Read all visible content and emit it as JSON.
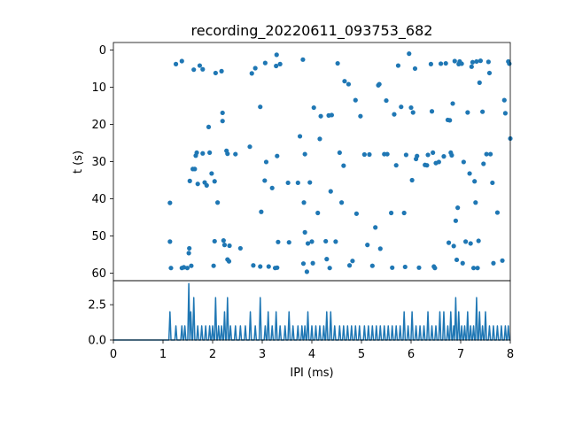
{
  "chart_data": [
    {
      "type": "scatter",
      "title": "recording_20220611_093753_682",
      "xlabel": "",
      "ylabel": "t (s)",
      "xlim": [
        0,
        8
      ],
      "ylim": [
        62,
        -2
      ],
      "yaxis_inverted": true,
      "yticks": [
        0,
        10,
        20,
        30,
        40,
        50,
        60
      ],
      "grid": false,
      "marker_color": "#1f77b4",
      "points": [
        [
          1.14,
          41.1
        ],
        [
          1.14,
          51.5
        ],
        [
          1.16,
          58.6
        ],
        [
          1.26,
          3.8
        ],
        [
          1.38,
          3.0
        ],
        [
          1.38,
          58.6
        ],
        [
          1.42,
          58.4
        ],
        [
          1.49,
          58.6
        ],
        [
          1.52,
          54.6
        ],
        [
          1.53,
          53.3
        ],
        [
          1.54,
          35.2
        ],
        [
          1.57,
          58.0
        ],
        [
          1.6,
          32.0
        ],
        [
          1.62,
          5.3
        ],
        [
          1.64,
          32.0
        ],
        [
          1.66,
          28.4
        ],
        [
          1.68,
          27.6
        ],
        [
          1.7,
          36.0
        ],
        [
          1.74,
          4.2
        ],
        [
          1.8,
          5.2
        ],
        [
          1.8,
          27.8
        ],
        [
          1.84,
          35.6
        ],
        [
          1.88,
          36.4
        ],
        [
          1.92,
          20.7
        ],
        [
          1.94,
          27.6
        ],
        [
          1.98,
          33.2
        ],
        [
          2.02,
          58.0
        ],
        [
          2.04,
          35.3
        ],
        [
          2.04,
          51.4
        ],
        [
          2.06,
          6.2
        ],
        [
          2.1,
          41.0
        ],
        [
          2.18,
          5.7
        ],
        [
          2.2,
          16.9
        ],
        [
          2.2,
          19.1
        ],
        [
          2.22,
          51.2
        ],
        [
          2.24,
          52.4
        ],
        [
          2.28,
          27.1
        ],
        [
          2.3,
          56.3
        ],
        [
          2.3,
          27.9
        ],
        [
          2.33,
          56.8
        ],
        [
          2.34,
          52.6
        ],
        [
          2.46,
          28.0
        ],
        [
          2.56,
          53.3
        ],
        [
          2.75,
          26.0
        ],
        [
          2.79,
          6.3
        ],
        [
          2.82,
          57.9
        ],
        [
          2.86,
          4.9
        ],
        [
          2.96,
          15.3
        ],
        [
          2.96,
          58.2
        ],
        [
          2.98,
          43.5
        ],
        [
          3.05,
          35.1
        ],
        [
          3.06,
          3.5
        ],
        [
          3.08,
          30.1
        ],
        [
          3.13,
          58.2
        ],
        [
          3.2,
          37.1
        ],
        [
          3.26,
          58.6
        ],
        [
          3.28,
          4.3
        ],
        [
          3.29,
          1.3
        ],
        [
          3.3,
          58.5
        ],
        [
          3.3,
          28.5
        ],
        [
          3.32,
          51.6
        ],
        [
          3.36,
          3.8
        ],
        [
          3.52,
          35.7
        ],
        [
          3.54,
          51.7
        ],
        [
          3.72,
          35.7
        ],
        [
          3.76,
          23.2
        ],
        [
          3.82,
          2.6
        ],
        [
          3.83,
          57.4
        ],
        [
          3.84,
          41.0
        ],
        [
          3.86,
          28.0
        ],
        [
          3.86,
          49.0
        ],
        [
          3.9,
          59.6
        ],
        [
          3.92,
          52.0
        ],
        [
          3.96,
          35.6
        ],
        [
          4.0,
          51.5
        ],
        [
          4.02,
          57.3
        ],
        [
          4.04,
          15.5
        ],
        [
          4.12,
          43.8
        ],
        [
          4.16,
          23.9
        ],
        [
          4.18,
          17.8
        ],
        [
          4.28,
          51.4
        ],
        [
          4.3,
          56.2
        ],
        [
          4.34,
          17.6
        ],
        [
          4.36,
          58.6
        ],
        [
          4.38,
          38.0
        ],
        [
          4.4,
          17.5
        ],
        [
          4.48,
          51.5
        ],
        [
          4.52,
          3.6
        ],
        [
          4.56,
          27.6
        ],
        [
          4.6,
          41.0
        ],
        [
          4.64,
          31.1
        ],
        [
          4.66,
          8.4
        ],
        [
          4.74,
          9.2
        ],
        [
          4.76,
          57.9
        ],
        [
          4.82,
          56.7
        ],
        [
          4.88,
          13.5
        ],
        [
          4.9,
          44.0
        ],
        [
          4.98,
          17.8
        ],
        [
          5.06,
          28.1
        ],
        [
          5.12,
          52.4
        ],
        [
          5.16,
          28.1
        ],
        [
          5.22,
          58.0
        ],
        [
          5.28,
          47.7
        ],
        [
          5.34,
          9.5
        ],
        [
          5.36,
          9.2
        ],
        [
          5.38,
          53.4
        ],
        [
          5.46,
          28.0
        ],
        [
          5.5,
          13.6
        ],
        [
          5.52,
          28.0
        ],
        [
          5.6,
          43.8
        ],
        [
          5.62,
          58.5
        ],
        [
          5.66,
          17.3
        ],
        [
          5.7,
          31.0
        ],
        [
          5.74,
          4.2
        ],
        [
          5.8,
          15.3
        ],
        [
          5.86,
          43.8
        ],
        [
          5.88,
          58.3
        ],
        [
          5.9,
          28.2
        ],
        [
          5.96,
          1.0
        ],
        [
          6.0,
          15.5
        ],
        [
          6.02,
          35.0
        ],
        [
          6.04,
          16.8
        ],
        [
          6.08,
          5.0
        ],
        [
          6.1,
          29.3
        ],
        [
          6.12,
          28.5
        ],
        [
          6.16,
          58.5
        ],
        [
          6.28,
          30.9
        ],
        [
          6.32,
          31.0
        ],
        [
          6.34,
          28.2
        ],
        [
          6.4,
          3.8
        ],
        [
          6.42,
          16.5
        ],
        [
          6.44,
          27.6
        ],
        [
          6.46,
          58.2
        ],
        [
          6.48,
          58.6
        ],
        [
          6.5,
          30.4
        ],
        [
          6.56,
          30.1
        ],
        [
          6.6,
          3.7
        ],
        [
          6.66,
          28.6
        ],
        [
          6.7,
          3.6
        ],
        [
          6.74,
          18.8
        ],
        [
          6.76,
          51.8
        ],
        [
          6.78,
          18.9
        ],
        [
          6.8,
          27.6
        ],
        [
          6.82,
          28.3
        ],
        [
          6.84,
          14.4
        ],
        [
          6.86,
          52.7
        ],
        [
          6.88,
          3.0
        ],
        [
          6.9,
          45.9
        ],
        [
          6.92,
          56.4
        ],
        [
          6.94,
          42.4
        ],
        [
          6.96,
          3.8
        ],
        [
          6.98,
          3.1
        ],
        [
          7.02,
          3.7
        ],
        [
          7.04,
          57.3
        ],
        [
          7.06,
          30.1
        ],
        [
          7.1,
          51.5
        ],
        [
          7.14,
          16.8
        ],
        [
          7.18,
          33.2
        ],
        [
          7.2,
          52.0
        ],
        [
          7.22,
          4.5
        ],
        [
          7.24,
          3.3
        ],
        [
          7.26,
          58.6
        ],
        [
          7.28,
          35.3
        ],
        [
          7.3,
          41.0
        ],
        [
          7.32,
          3.1
        ],
        [
          7.34,
          58.6
        ],
        [
          7.36,
          51.3
        ],
        [
          7.38,
          8.8
        ],
        [
          7.4,
          2.9
        ],
        [
          7.44,
          16.6
        ],
        [
          7.46,
          30.6
        ],
        [
          7.52,
          28.0
        ],
        [
          7.56,
          3.2
        ],
        [
          7.58,
          6.2
        ],
        [
          7.6,
          28.0
        ],
        [
          7.64,
          35.7
        ],
        [
          7.66,
          57.3
        ],
        [
          7.74,
          43.7
        ],
        [
          7.84,
          56.6
        ],
        [
          7.88,
          13.5
        ],
        [
          7.9,
          17.0
        ],
        [
          7.96,
          3.1
        ],
        [
          7.98,
          3.7
        ],
        [
          8.0,
          23.8
        ]
      ]
    },
    {
      "type": "line",
      "title": "",
      "xlabel": "IPI (ms)",
      "ylabel": "",
      "xlim": [
        0,
        8
      ],
      "ylim": [
        0,
        4.2
      ],
      "xticks": [
        0,
        1,
        2,
        3,
        4,
        5,
        6,
        7,
        8
      ],
      "yticks": [
        0.0,
        2.5
      ],
      "ytick_labels": [
        "0.0",
        "2.5"
      ],
      "grid": false,
      "line_color": "#1f77b4",
      "baseline": [
        [
          0,
          0
        ],
        [
          1.1,
          0
        ]
      ],
      "peaks": [
        [
          1.14,
          2
        ],
        [
          1.26,
          1
        ],
        [
          1.38,
          1
        ],
        [
          1.44,
          1
        ],
        [
          1.52,
          4
        ],
        [
          1.56,
          2
        ],
        [
          1.62,
          3
        ],
        [
          1.7,
          1
        ],
        [
          1.78,
          1
        ],
        [
          1.86,
          1
        ],
        [
          1.94,
          1
        ],
        [
          2.0,
          1
        ],
        [
          2.06,
          3
        ],
        [
          2.12,
          1
        ],
        [
          2.18,
          1
        ],
        [
          2.24,
          2
        ],
        [
          2.3,
          3
        ],
        [
          2.36,
          1
        ],
        [
          2.46,
          1
        ],
        [
          2.56,
          1
        ],
        [
          2.66,
          1
        ],
        [
          2.76,
          2
        ],
        [
          2.86,
          1
        ],
        [
          2.96,
          3
        ],
        [
          3.06,
          1
        ],
        [
          3.12,
          2
        ],
        [
          3.2,
          1
        ],
        [
          3.28,
          2
        ],
        [
          3.36,
          1
        ],
        [
          3.46,
          1
        ],
        [
          3.54,
          2
        ],
        [
          3.62,
          1
        ],
        [
          3.72,
          1
        ],
        [
          3.8,
          1
        ],
        [
          3.86,
          1
        ],
        [
          3.92,
          2
        ],
        [
          4.0,
          1
        ],
        [
          4.08,
          1
        ],
        [
          4.16,
          1
        ],
        [
          4.24,
          1
        ],
        [
          4.3,
          2
        ],
        [
          4.38,
          2
        ],
        [
          4.46,
          1
        ],
        [
          4.56,
          1
        ],
        [
          4.64,
          1
        ],
        [
          4.72,
          1
        ],
        [
          4.8,
          1
        ],
        [
          4.88,
          1
        ],
        [
          4.96,
          1
        ],
        [
          5.06,
          1
        ],
        [
          5.14,
          1
        ],
        [
          5.22,
          1
        ],
        [
          5.3,
          1
        ],
        [
          5.38,
          1
        ],
        [
          5.46,
          1
        ],
        [
          5.54,
          1
        ],
        [
          5.62,
          1
        ],
        [
          5.7,
          1
        ],
        [
          5.78,
          1
        ],
        [
          5.86,
          2
        ],
        [
          5.94,
          1
        ],
        [
          6.02,
          2
        ],
        [
          6.1,
          1
        ],
        [
          6.18,
          1
        ],
        [
          6.26,
          1
        ],
        [
          6.34,
          2
        ],
        [
          6.42,
          1
        ],
        [
          6.5,
          1
        ],
        [
          6.58,
          2
        ],
        [
          6.66,
          2
        ],
        [
          6.74,
          1
        ],
        [
          6.8,
          2
        ],
        [
          6.86,
          1
        ],
        [
          6.9,
          3
        ],
        [
          6.96,
          2
        ],
        [
          7.02,
          1
        ],
        [
          7.08,
          1
        ],
        [
          7.14,
          2
        ],
        [
          7.2,
          1
        ],
        [
          7.26,
          1
        ],
        [
          7.32,
          3
        ],
        [
          7.38,
          2
        ],
        [
          7.44,
          1
        ],
        [
          7.5,
          2
        ],
        [
          7.58,
          1
        ],
        [
          7.66,
          1
        ],
        [
          7.74,
          1
        ],
        [
          7.82,
          1
        ],
        [
          7.9,
          1
        ],
        [
          7.96,
          1
        ]
      ]
    }
  ]
}
